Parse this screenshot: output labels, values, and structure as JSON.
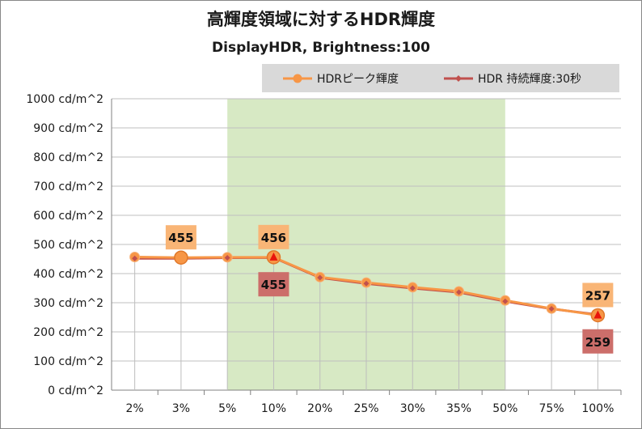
{
  "chart_data": {
    "type": "line",
    "title": "高輝度領域に対するHDR輝度",
    "subtitle": "DisplayHDR, Brightness:100",
    "categories": [
      "2%",
      "3%",
      "5%",
      "10%",
      "20%",
      "25%",
      "30%",
      "35%",
      "50%",
      "75%",
      "100%"
    ],
    "ylim": [
      0,
      1000
    ],
    "yticks": [
      "0 cd/m^2",
      "100 cd/m^2",
      "200 cd/m^2",
      "300 cd/m^2",
      "400 cd/m^2",
      "500 cd/m^2",
      "600 cd/m^2",
      "700 cd/m^2",
      "800 cd/m^2",
      "900 cd/m^2",
      "1000 cd/m^2"
    ],
    "grid": true,
    "legend_position": "top-right",
    "highlight_range": {
      "from": "5%",
      "to": "50%",
      "color": "#d7e9c4"
    },
    "series": [
      {
        "name": "HDRピーク輝度",
        "color": "#f79646",
        "marker": "circle",
        "values": [
          457,
          455,
          456,
          456,
          388,
          369,
          353,
          339,
          308,
          280,
          257
        ],
        "labels": [
          {
            "index": 1,
            "text": "455",
            "pos": "above"
          },
          {
            "index": 3,
            "text": "456",
            "pos": "above"
          },
          {
            "index": 10,
            "text": "257",
            "pos": "above"
          }
        ],
        "label_bg": "#f9b576"
      },
      {
        "name": "HDR 持続輝度:30秒",
        "color": "#c0504d",
        "marker": "diamond",
        "values": [
          452,
          452,
          454,
          455,
          386,
          366,
          350,
          336,
          305,
          279,
          259
        ],
        "labels": [
          {
            "index": 3,
            "text": "455",
            "pos": "below"
          },
          {
            "index": 10,
            "text": "259",
            "pos": "below"
          }
        ],
        "label_bg": "#cc6e6a"
      }
    ],
    "marker_overlays": [
      {
        "index": 1,
        "shape": "circle-large"
      },
      {
        "index": 3,
        "shape": "triangle"
      },
      {
        "index": 10,
        "shape": "triangle"
      }
    ]
  }
}
